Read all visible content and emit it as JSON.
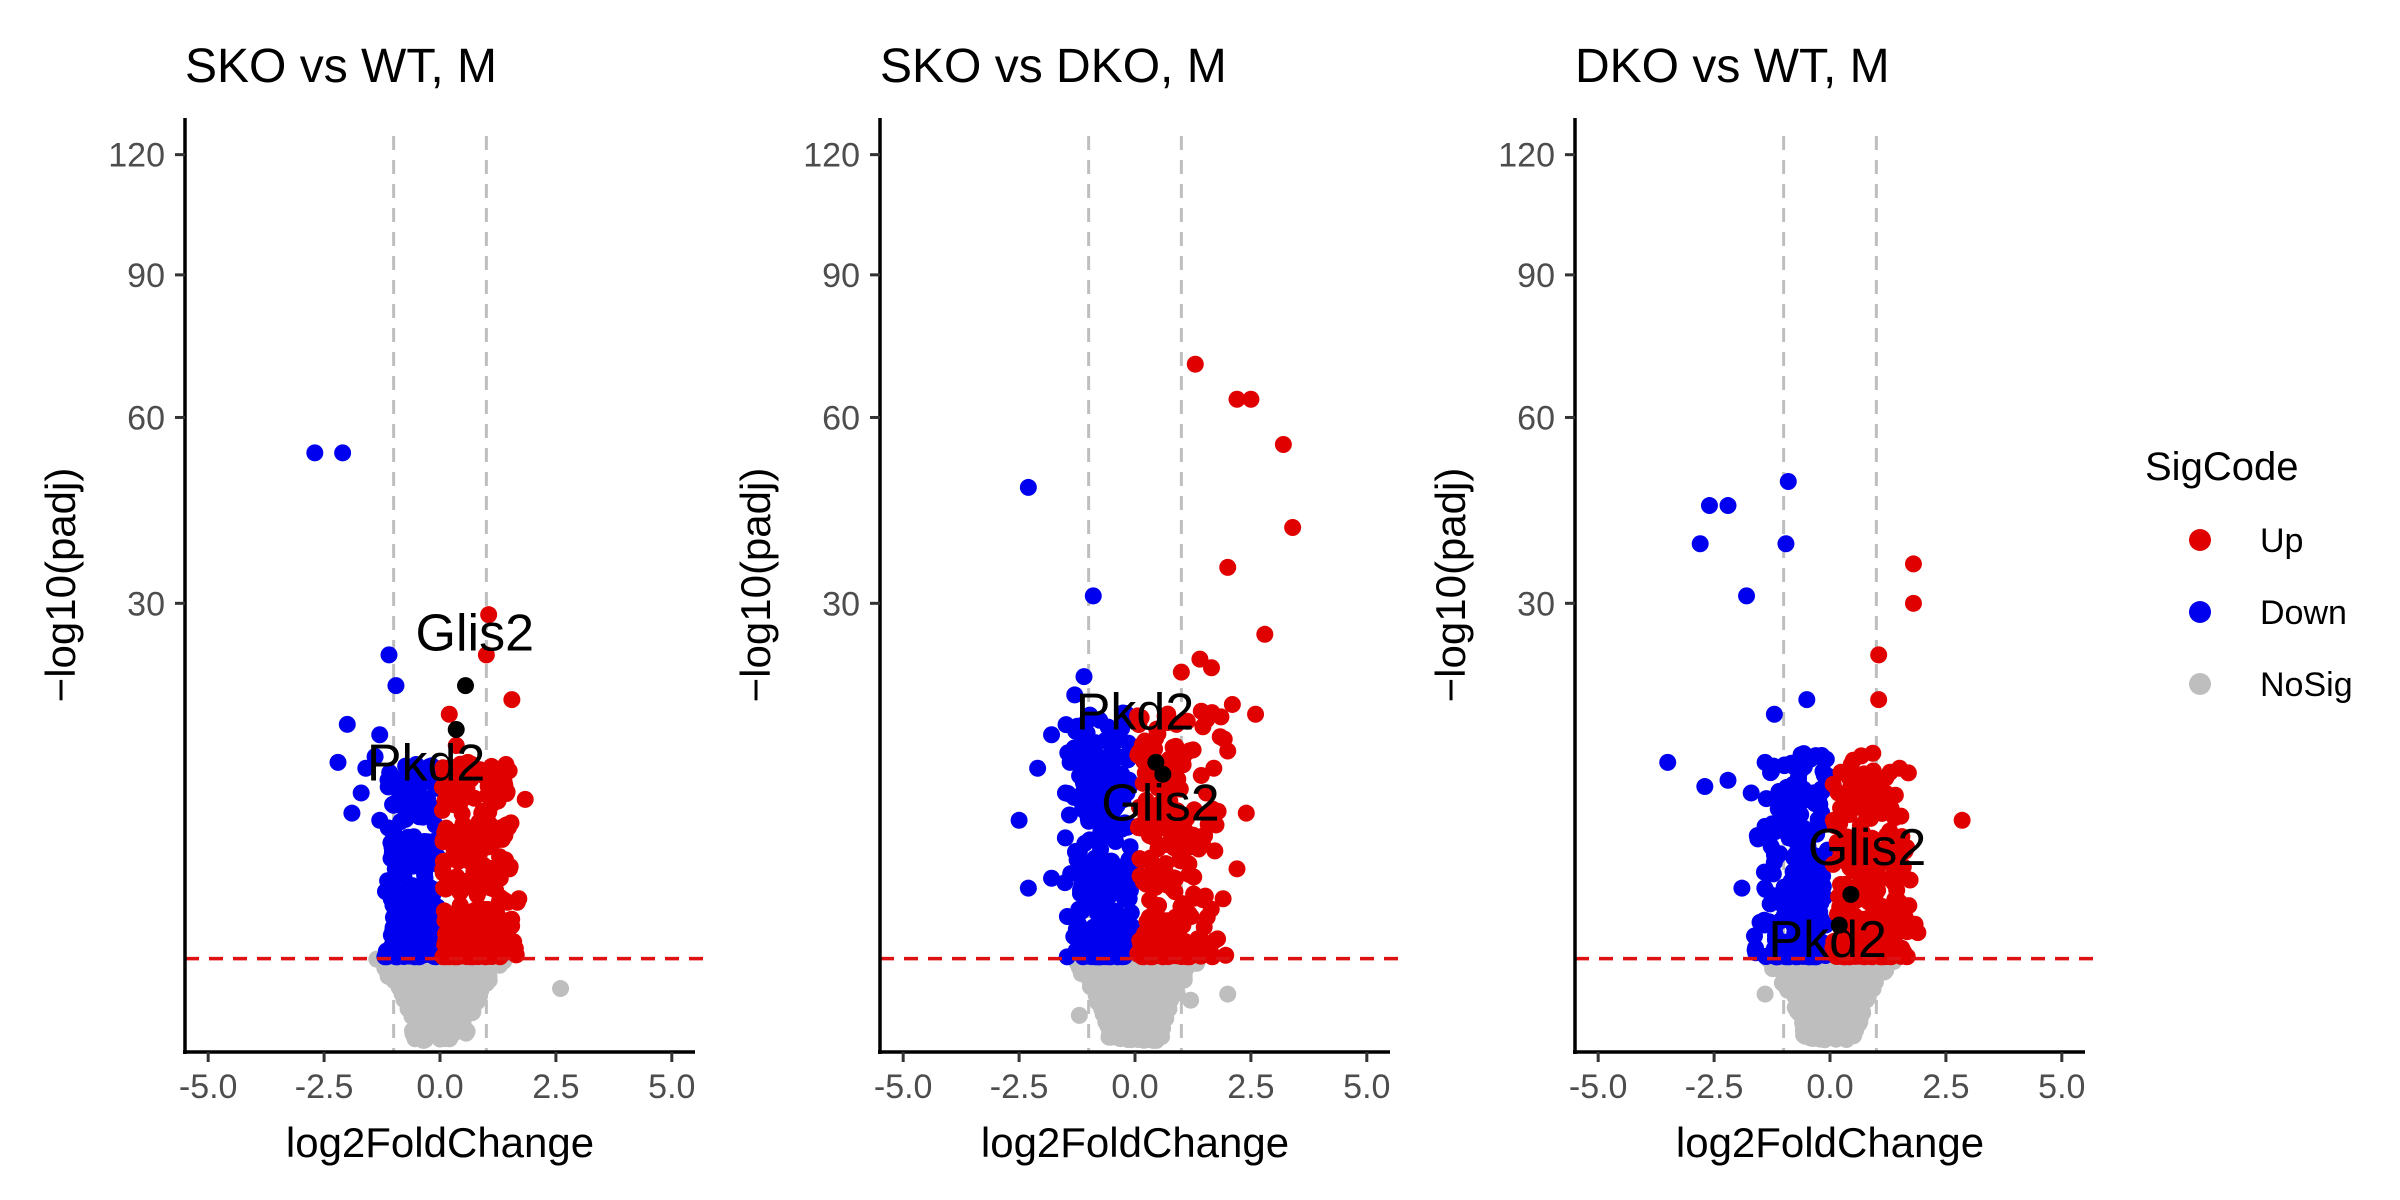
{
  "chart_data": [
    {
      "type": "scatter",
      "title": "SKO vs WT, M",
      "xlabel": "log2FoldChange",
      "ylabel": "−log10(padj)",
      "xlim": [
        -5.5,
        5.5
      ],
      "ylim_display": [
        0,
        130
      ],
      "y_scale": "sqrt",
      "xticks": [
        "-5.0",
        "-2.5",
        "0.0",
        "2.5",
        "5.0"
      ],
      "xtick_values": [
        -5,
        -2.5,
        0,
        2.5,
        5
      ],
      "yticks": [
        "30",
        "60",
        "90",
        "120"
      ],
      "ytick_values": [
        30,
        60,
        90,
        120
      ],
      "vlines": [
        -1,
        1
      ],
      "hline": 1.3,
      "grid": false,
      "cloud": {
        "up_xmax": 1.8,
        "down_xmin": -1.2,
        "ymax_dense": 11,
        "seed": 11
      },
      "points": {
        "Up": [
          [
            1.05,
            28.5
          ],
          [
            1.0,
            23.5
          ],
          [
            1.55,
            18.5
          ],
          [
            0.2,
            17
          ],
          [
            0.35,
            14
          ],
          [
            0.6,
            12.5
          ],
          [
            1.2,
            9.5
          ],
          [
            0.9,
            8.5
          ],
          [
            1.4,
            7
          ],
          [
            0.8,
            6
          ],
          [
            1.5,
            5
          ],
          [
            1.7,
            3.5
          ],
          [
            1.3,
            4.5
          ],
          [
            1.1,
            3
          ]
        ],
        "Down": [
          [
            -2.7,
            53.5
          ],
          [
            -2.1,
            53.5
          ],
          [
            -1.1,
            23.5
          ],
          [
            -0.95,
            20
          ],
          [
            -2.0,
            16
          ],
          [
            -1.3,
            15
          ],
          [
            -2.2,
            12.5
          ],
          [
            -1.6,
            12
          ],
          [
            -1.4,
            13
          ],
          [
            -0.9,
            11
          ],
          [
            -1.7,
            10
          ],
          [
            -1.3,
            8
          ],
          [
            -1.9,
            8.5
          ],
          [
            -1.0,
            7
          ],
          [
            -0.7,
            6
          ]
        ],
        "NoSig": [
          [
            2.6,
            0.6
          ],
          [
            -0.2,
            0.4
          ],
          [
            -0.5,
            0.6
          ],
          [
            0.4,
            0.2
          ],
          [
            1.0,
            0.7
          ]
        ],
        "highlight": [
          [
            0.55,
            20
          ],
          [
            0.35,
            15.5
          ]
        ]
      },
      "labels": [
        {
          "text": "Glis2",
          "x": 0.75,
          "y": 24
        },
        {
          "text": "Pkd2",
          "x": -0.3,
          "y": 11
        }
      ]
    },
    {
      "type": "scatter",
      "title": "SKO vs DKO, M",
      "xlabel": "log2FoldChange",
      "ylabel": "−log10(padj)",
      "xlim": [
        -5.5,
        5.5
      ],
      "ylim_display": [
        0,
        130
      ],
      "y_scale": "sqrt",
      "xticks": [
        "-5.0",
        "-2.5",
        "0.0",
        "2.5",
        "5.0"
      ],
      "xtick_values": [
        -5,
        -2.5,
        0,
        2.5,
        5
      ],
      "yticks": [
        "30",
        "60",
        "90",
        "120"
      ],
      "ytick_values": [
        30,
        60,
        90,
        120
      ],
      "vlines": [
        -1,
        1
      ],
      "hline": 1.3,
      "grid": false,
      "cloud": {
        "up_xmax": 2.0,
        "down_xmin": -1.6,
        "ymax_dense": 16,
        "seed": 23
      },
      "points": {
        "Up": [
          [
            1.3,
            70.5
          ],
          [
            2.2,
            63.5
          ],
          [
            2.5,
            63.5
          ],
          [
            3.2,
            55
          ],
          [
            3.4,
            41
          ],
          [
            2.0,
            35
          ],
          [
            2.8,
            26
          ],
          [
            1.4,
            23
          ],
          [
            1.65,
            22
          ],
          [
            1.0,
            21.5
          ],
          [
            2.1,
            18
          ],
          [
            2.6,
            17
          ],
          [
            2.0,
            13.5
          ],
          [
            1.7,
            12
          ],
          [
            2.4,
            8.5
          ],
          [
            1.5,
            7
          ],
          [
            2.2,
            5
          ],
          [
            1.9,
            3.5
          ]
        ],
        "Down": [
          [
            -2.3,
            47.5
          ],
          [
            -0.9,
            31
          ],
          [
            -1.1,
            21
          ],
          [
            -1.3,
            19
          ],
          [
            -1.8,
            15
          ],
          [
            -2.1,
            12
          ],
          [
            -2.5,
            8
          ],
          [
            -1.5,
            10
          ],
          [
            -1.8,
            4.5
          ],
          [
            -2.3,
            4
          ],
          [
            -1.2,
            6
          ],
          [
            -0.9,
            8
          ],
          [
            -1.4,
            12.5
          ],
          [
            -1.0,
            14
          ]
        ],
        "NoSig": [
          [
            2.0,
            0.5
          ],
          [
            1.2,
            0.4
          ],
          [
            -0.4,
            0.5
          ],
          [
            -1.2,
            0.2
          ],
          [
            0.5,
            0.3
          ]
        ],
        "highlight": [
          [
            0.45,
            12.5
          ],
          [
            0.6,
            11.5
          ]
        ]
      },
      "labels": [
        {
          "text": "Pkd2",
          "x": 0.0,
          "y": 15.5
        },
        {
          "text": "Glis2",
          "x": 0.55,
          "y": 8
        }
      ]
    },
    {
      "type": "scatter",
      "title": "DKO vs WT, M",
      "xlabel": "log2FoldChange",
      "ylabel": "−log10(padj)",
      "xlim": [
        -5.5,
        5.5
      ],
      "ylim_display": [
        0,
        130
      ],
      "y_scale": "sqrt",
      "xticks": [
        "-5.0",
        "-2.5",
        "0.0",
        "2.5",
        "5.0"
      ],
      "xtick_values": [
        -5,
        -2.5,
        0,
        2.5,
        5
      ],
      "yticks": [
        "30",
        "60",
        "90",
        "120"
      ],
      "ytick_values": [
        30,
        60,
        90,
        120
      ],
      "vlines": [
        -1,
        1
      ],
      "hline": 1.3,
      "grid": false,
      "cloud": {
        "up_xmax": 1.9,
        "down_xmin": -1.7,
        "ymax_dense": 12,
        "seed": 37
      },
      "points": {
        "Up": [
          [
            1.8,
            35.5
          ],
          [
            1.8,
            30
          ],
          [
            1.05,
            23.5
          ],
          [
            1.05,
            18.5
          ],
          [
            2.85,
            8
          ],
          [
            1.5,
            12
          ],
          [
            1.2,
            10
          ],
          [
            1.6,
            6
          ],
          [
            1.3,
            4.5
          ]
        ],
        "Down": [
          [
            -0.9,
            48.5
          ],
          [
            -2.6,
            44.5
          ],
          [
            -2.2,
            44.5
          ],
          [
            -2.8,
            38.5
          ],
          [
            -0.95,
            38.5
          ],
          [
            -1.8,
            31
          ],
          [
            -0.5,
            18.5
          ],
          [
            -1.2,
            17
          ],
          [
            -3.5,
            12.5
          ],
          [
            -2.7,
            10.5
          ],
          [
            -1.7,
            10
          ],
          [
            -1.4,
            12.5
          ],
          [
            -2.2,
            11
          ],
          [
            -1.9,
            4
          ],
          [
            -1.0,
            8
          ],
          [
            -0.6,
            13
          ]
        ],
        "NoSig": [
          [
            -0.8,
            0.6
          ],
          [
            -1.4,
            0.5
          ],
          [
            -0.5,
            0.4
          ],
          [
            0.3,
            0.3
          ],
          [
            0.7,
            0.5
          ]
        ],
        "highlight": [
          [
            0.45,
            3.7
          ],
          [
            0.2,
            2.4
          ]
        ]
      },
      "labels": [
        {
          "text": "Glis2",
          "x": 0.8,
          "y": 5.2
        },
        {
          "text": "Pkd2",
          "x": -0.05,
          "y": 1.35
        }
      ]
    }
  ],
  "legend": {
    "title": "SigCode",
    "placement": "right",
    "items": [
      {
        "label": "Up",
        "color": "#e00000"
      },
      {
        "label": "Down",
        "color": "#0000ee"
      },
      {
        "label": "NoSig",
        "color": "#bebebe"
      }
    ]
  },
  "colors": {
    "up": "#e00000",
    "down": "#0000ee",
    "nosig": "#bebebe",
    "highlight": "#000000",
    "vline": "#bebebe",
    "hline": "#dd1111",
    "axis": "#000000"
  }
}
